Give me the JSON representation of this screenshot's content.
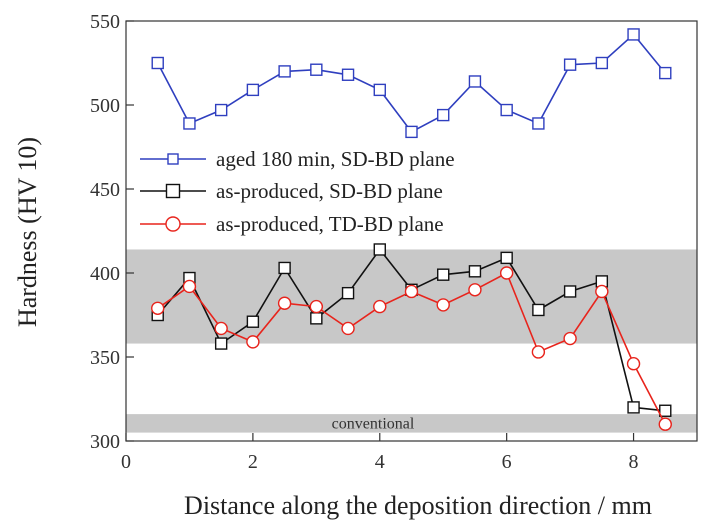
{
  "chart_data": {
    "type": "line",
    "title": "",
    "xlabel": "Distance along the deposition direction / mm",
    "ylabel": "Hardness (HV 10)",
    "xlim": [
      0,
      9
    ],
    "ylim": [
      300,
      550
    ],
    "xticks": [
      0,
      2,
      4,
      6,
      8
    ],
    "yticks": [
      300,
      350,
      400,
      450,
      500,
      550
    ],
    "grid": false,
    "legend_position": "middle-left",
    "bands": [
      {
        "y0": 358,
        "y1": 414,
        "label": "",
        "color": "#c8c8c8"
      },
      {
        "y0": 305,
        "y1": 316,
        "label": "conventional",
        "color": "#c8c8c8"
      }
    ],
    "series": [
      {
        "name": "aged 180 min, SD-BD plane",
        "color": "#2f3fbf",
        "marker": "square",
        "x": [
          0.5,
          1.0,
          1.5,
          2.0,
          2.5,
          3.0,
          3.5,
          4.0,
          4.5,
          5.0,
          5.5,
          6.0,
          6.5,
          7.0,
          7.5,
          8.0,
          8.5
        ],
        "y": [
          525,
          489,
          497,
          509,
          520,
          521,
          518,
          509,
          484,
          494,
          514,
          497,
          489,
          524,
          525,
          542,
          519
        ]
      },
      {
        "name": "as-produced, SD-BD plane",
        "color": "#111111",
        "marker": "square",
        "x": [
          0.5,
          1.0,
          1.5,
          2.0,
          2.5,
          3.0,
          3.5,
          4.0,
          4.5,
          5.0,
          5.5,
          6.0,
          6.5,
          7.0,
          7.5,
          8.0,
          8.5
        ],
        "y": [
          375,
          397,
          358,
          371,
          403,
          373,
          388,
          414,
          390,
          399,
          401,
          409,
          378,
          389,
          395,
          320,
          318
        ]
      },
      {
        "name": "as-produced, TD-BD plane",
        "color": "#e8241c",
        "marker": "circle",
        "x": [
          0.5,
          1.0,
          1.5,
          2.0,
          2.5,
          3.0,
          3.5,
          4.0,
          4.5,
          5.0,
          5.5,
          6.0,
          6.5,
          7.0,
          7.5,
          8.0,
          8.5
        ],
        "y": [
          379,
          392,
          367,
          359,
          382,
          380,
          367,
          380,
          389,
          381,
          390,
          400,
          353,
          361,
          389,
          346,
          310
        ]
      }
    ]
  }
}
